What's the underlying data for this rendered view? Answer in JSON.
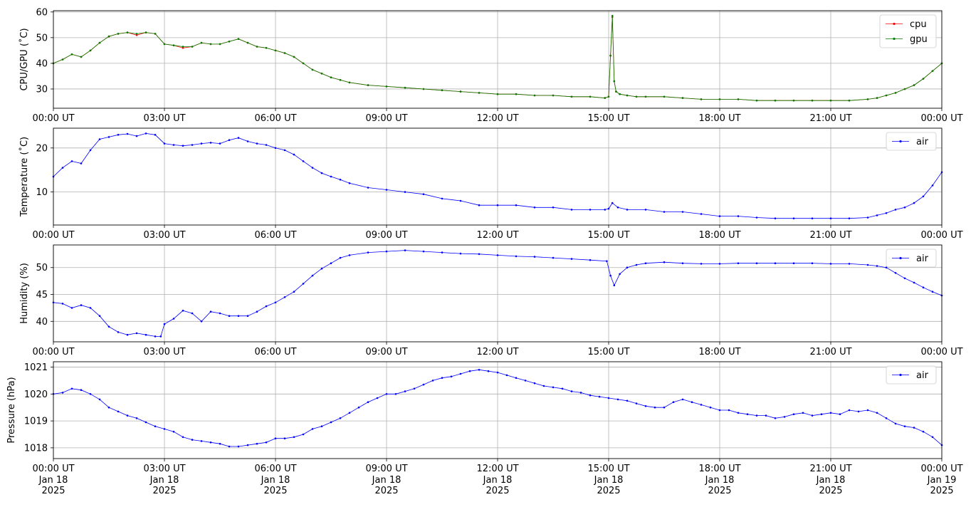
{
  "chart_data": [
    {
      "type": "line",
      "ylabel": "CPU/GPU (˚C)",
      "ylim": [
        22.5,
        60.5
      ],
      "yticks": [
        30,
        40,
        50,
        60
      ],
      "xlim": [
        0,
        24
      ],
      "xticks": [
        0,
        3,
        6,
        9,
        12,
        15,
        18,
        21,
        24
      ],
      "xtick_labels": [
        "00:00 UT",
        "03:00 UT",
        "06:00 UT",
        "09:00 UT",
        "12:00 UT",
        "15:00 UT",
        "18:00 UT",
        "21:00 UT",
        "00:00 UT"
      ],
      "grid": true,
      "legend_position": "top-right",
      "series": [
        {
          "name": "cpu",
          "color": "#ff0000",
          "x": [
            0,
            0.25,
            0.5,
            0.75,
            1.0,
            1.25,
            1.5,
            1.75,
            2.0,
            2.25,
            2.5,
            2.75,
            3.0,
            3.25,
            3.5,
            3.75,
            4.0,
            4.25,
            4.5,
            4.75,
            5.0,
            5.25,
            5.5,
            5.75,
            6.0,
            6.25,
            6.5,
            6.75,
            7.0,
            7.25,
            7.5,
            7.75,
            8.0,
            8.5,
            9.0,
            9.5,
            10.0,
            10.5,
            11.0,
            11.5,
            12.0,
            12.5,
            13.0,
            13.5,
            14.0,
            14.5,
            14.9,
            15.0,
            15.05,
            15.1,
            15.15,
            15.2,
            15.3,
            15.5,
            15.75,
            16.0,
            16.5,
            17.0,
            17.5,
            18.0,
            18.5,
            19.0,
            19.5,
            20.0,
            20.5,
            21.0,
            21.5,
            22.0,
            22.25,
            22.5,
            22.75,
            23.0,
            23.25,
            23.5,
            23.75,
            24.0
          ],
          "y": [
            40,
            41.5,
            43.5,
            42.5,
            45,
            48,
            50.5,
            51.5,
            52,
            51,
            52,
            51.5,
            47.5,
            47,
            46,
            46.5,
            48,
            47.5,
            47.5,
            48.5,
            49.5,
            48,
            46.5,
            46,
            45,
            44,
            42.5,
            40,
            37.5,
            36,
            34.5,
            33.5,
            32.5,
            31.5,
            31,
            30.5,
            30,
            29.5,
            29,
            28.5,
            28,
            28,
            27.5,
            27.5,
            27,
            27,
            26.5,
            27,
            43,
            58,
            33,
            29,
            28,
            27.5,
            27,
            27,
            27,
            26.5,
            26,
            26,
            26,
            25.5,
            25.5,
            25.5,
            25.5,
            25.5,
            25.5,
            26,
            26.5,
            27.5,
            28.5,
            30,
            31.5,
            34,
            37,
            40
          ]
        },
        {
          "name": "gpu",
          "color": "#008000",
          "x": [
            0,
            0.25,
            0.5,
            0.75,
            1.0,
            1.25,
            1.5,
            1.75,
            2.0,
            2.25,
            2.5,
            2.75,
            3.0,
            3.25,
            3.5,
            3.75,
            4.0,
            4.25,
            4.5,
            4.75,
            5.0,
            5.25,
            5.5,
            5.75,
            6.0,
            6.25,
            6.5,
            6.75,
            7.0,
            7.25,
            7.5,
            7.75,
            8.0,
            8.5,
            9.0,
            9.5,
            10.0,
            10.5,
            11.0,
            11.5,
            12.0,
            12.5,
            13.0,
            13.5,
            14.0,
            14.5,
            14.9,
            15.0,
            15.05,
            15.1,
            15.15,
            15.2,
            15.3,
            15.5,
            15.75,
            16.0,
            16.5,
            17.0,
            17.5,
            18.0,
            18.5,
            19.0,
            19.5,
            20.0,
            20.5,
            21.0,
            21.5,
            22.0,
            22.25,
            22.5,
            22.75,
            23.0,
            23.25,
            23.5,
            23.75,
            24.0
          ],
          "y": [
            40,
            41.5,
            43.5,
            42.5,
            45,
            48,
            50.5,
            51.5,
            52,
            51.5,
            52,
            51.5,
            47.5,
            47,
            46.5,
            46.5,
            48,
            47.5,
            47.5,
            48.5,
            49.5,
            48,
            46.5,
            46,
            45,
            44,
            42.5,
            40,
            37.5,
            36,
            34.5,
            33.5,
            32.5,
            31.5,
            31,
            30.5,
            30,
            29.5,
            29,
            28.5,
            28,
            28,
            27.5,
            27.5,
            27,
            27,
            26.5,
            27,
            43,
            58.5,
            33,
            29,
            28,
            27.5,
            27,
            27,
            27,
            26.5,
            26,
            26,
            26,
            25.5,
            25.5,
            25.5,
            25.5,
            25.5,
            25.5,
            26,
            26.5,
            27.5,
            28.5,
            30,
            31.5,
            34,
            37,
            40
          ]
        }
      ]
    },
    {
      "type": "line",
      "ylabel": "Temperature (˚C)",
      "ylim": [
        2.5,
        24.5
      ],
      "yticks": [
        10,
        20
      ],
      "xlim": [
        0,
        24
      ],
      "xticks": [
        0,
        3,
        6,
        9,
        12,
        15,
        18,
        21,
        24
      ],
      "xtick_labels": [
        "00:00 UT",
        "03:00 UT",
        "06:00 UT",
        "09:00 UT",
        "12:00 UT",
        "15:00 UT",
        "18:00 UT",
        "21:00 UT",
        "00:00 UT"
      ],
      "grid": true,
      "legend_position": "top-right",
      "series": [
        {
          "name": "air",
          "color": "#0000ff",
          "x": [
            0,
            0.25,
            0.5,
            0.75,
            1.0,
            1.25,
            1.5,
            1.75,
            2.0,
            2.25,
            2.5,
            2.75,
            3.0,
            3.25,
            3.5,
            3.75,
            4.0,
            4.25,
            4.5,
            4.75,
            5.0,
            5.25,
            5.5,
            5.75,
            6.0,
            6.25,
            6.5,
            6.75,
            7.0,
            7.25,
            7.5,
            7.75,
            8.0,
            8.5,
            9.0,
            9.5,
            10.0,
            10.5,
            11.0,
            11.5,
            12.0,
            12.5,
            13.0,
            13.5,
            14.0,
            14.5,
            14.9,
            15.0,
            15.1,
            15.25,
            15.5,
            16.0,
            16.5,
            17.0,
            17.5,
            18.0,
            18.5,
            19.0,
            19.5,
            20.0,
            20.5,
            21.0,
            21.5,
            22.0,
            22.25,
            22.5,
            22.75,
            23.0,
            23.25,
            23.5,
            23.75,
            24.0
          ],
          "y": [
            13.5,
            15.5,
            17,
            16.5,
            19.5,
            22,
            22.5,
            23,
            23.2,
            22.7,
            23.3,
            23,
            21,
            20.7,
            20.5,
            20.7,
            21,
            21.2,
            21,
            21.8,
            22.3,
            21.5,
            21,
            20.7,
            20,
            19.5,
            18.5,
            17,
            15.5,
            14.3,
            13.5,
            12.8,
            12,
            11,
            10.5,
            10,
            9.5,
            8.5,
            8,
            7,
            7,
            7,
            6.5,
            6.5,
            6,
            6,
            6,
            6.2,
            7.5,
            6.5,
            6,
            6,
            5.5,
            5.5,
            5,
            4.5,
            4.5,
            4.2,
            4,
            4,
            4,
            4,
            4,
            4.2,
            4.7,
            5.2,
            6,
            6.5,
            7.5,
            9,
            11.5,
            14.5
          ]
        }
      ]
    },
    {
      "type": "line",
      "ylabel": "Humidity (%)",
      "ylim": [
        36.2,
        54.2
      ],
      "yticks": [
        40,
        45,
        50
      ],
      "xlim": [
        0,
        24
      ],
      "xticks": [
        0,
        3,
        6,
        9,
        12,
        15,
        18,
        21,
        24
      ],
      "xtick_labels": [
        "00:00 UT",
        "03:00 UT",
        "06:00 UT",
        "09:00 UT",
        "12:00 UT",
        "15:00 UT",
        "18:00 UT",
        "21:00 UT",
        "00:00 UT"
      ],
      "grid": true,
      "legend_position": "top-right",
      "series": [
        {
          "name": "air",
          "color": "#0000ff",
          "x": [
            0,
            0.25,
            0.5,
            0.75,
            1.0,
            1.25,
            1.5,
            1.75,
            2.0,
            2.25,
            2.5,
            2.75,
            2.9,
            3.0,
            3.25,
            3.5,
            3.75,
            4.0,
            4.25,
            4.5,
            4.75,
            5.0,
            5.25,
            5.5,
            5.75,
            6.0,
            6.25,
            6.5,
            6.75,
            7.0,
            7.25,
            7.5,
            7.75,
            8.0,
            8.5,
            9.0,
            9.5,
            10.0,
            10.5,
            11.0,
            11.5,
            12.0,
            12.5,
            13.0,
            13.5,
            14.0,
            14.5,
            14.95,
            15.05,
            15.15,
            15.3,
            15.5,
            15.75,
            16.0,
            16.5,
            17.0,
            17.5,
            18.0,
            18.5,
            19.0,
            19.5,
            20.0,
            20.5,
            21.0,
            21.5,
            22.0,
            22.25,
            22.5,
            22.75,
            23.0,
            23.25,
            23.5,
            23.75,
            24.0
          ],
          "y": [
            43.5,
            43.3,
            42.5,
            43,
            42.5,
            41,
            39,
            38,
            37.5,
            37.8,
            37.5,
            37.2,
            37.2,
            39.5,
            40.5,
            42,
            41.5,
            40,
            41.8,
            41.5,
            41,
            41,
            41,
            41.8,
            42.8,
            43.5,
            44.5,
            45.5,
            47,
            48.5,
            49.8,
            50.8,
            51.8,
            52.3,
            52.8,
            53,
            53.2,
            53,
            52.8,
            52.6,
            52.5,
            52.3,
            52.1,
            52,
            51.8,
            51.6,
            51.4,
            51.2,
            48.5,
            46.7,
            48.8,
            50,
            50.5,
            50.8,
            51,
            50.8,
            50.7,
            50.7,
            50.8,
            50.8,
            50.8,
            50.8,
            50.8,
            50.7,
            50.7,
            50.5,
            50.3,
            50,
            49,
            48,
            47.2,
            46.3,
            45.5,
            44.8
          ]
        }
      ]
    },
    {
      "type": "line",
      "ylabel": "Pressure (hPa)",
      "ylim": [
        1017.6,
        1021.2
      ],
      "yticks": [
        1018,
        1019,
        1020,
        1021
      ],
      "xlim": [
        0,
        24
      ],
      "xticks": [
        0,
        3,
        6,
        9,
        12,
        15,
        18,
        21,
        24
      ],
      "xtick_labels": [
        "00:00 UT",
        "03:00 UT",
        "06:00 UT",
        "09:00 UT",
        "12:00 UT",
        "15:00 UT",
        "18:00 UT",
        "21:00 UT",
        "00:00 UT"
      ],
      "xtick_date_labels": [
        [
          "Jan 18",
          "2025"
        ],
        [
          "Jan 18",
          "2025"
        ],
        [
          "Jan 18",
          "2025"
        ],
        [
          "Jan 18",
          "2025"
        ],
        [
          "Jan 18",
          "2025"
        ],
        [
          "Jan 18",
          "2025"
        ],
        [
          "Jan 18",
          "2025"
        ],
        [
          "Jan 18",
          "2025"
        ],
        [
          "Jan 19",
          "2025"
        ]
      ],
      "grid": true,
      "legend_position": "top-right",
      "series": [
        {
          "name": "air",
          "color": "#0000ff",
          "x": [
            0,
            0.25,
            0.5,
            0.75,
            1.0,
            1.25,
            1.5,
            1.75,
            2.0,
            2.25,
            2.5,
            2.75,
            3.0,
            3.25,
            3.5,
            3.75,
            4.0,
            4.25,
            4.5,
            4.75,
            5.0,
            5.25,
            5.5,
            5.75,
            6.0,
            6.25,
            6.5,
            6.75,
            7.0,
            7.25,
            7.5,
            7.75,
            8.0,
            8.25,
            8.5,
            8.75,
            9.0,
            9.25,
            9.5,
            9.75,
            10.0,
            10.25,
            10.5,
            10.75,
            11.0,
            11.25,
            11.5,
            11.75,
            12.0,
            12.25,
            12.5,
            12.75,
            13.0,
            13.25,
            13.5,
            13.75,
            14.0,
            14.25,
            14.5,
            14.75,
            15.0,
            15.25,
            15.5,
            15.75,
            16.0,
            16.25,
            16.5,
            16.75,
            17.0,
            17.25,
            17.5,
            17.75,
            18.0,
            18.25,
            18.5,
            18.75,
            19.0,
            19.25,
            19.5,
            19.75,
            20.0,
            20.25,
            20.5,
            20.75,
            21.0,
            21.25,
            21.5,
            21.75,
            22.0,
            22.25,
            22.5,
            22.75,
            23.0,
            23.25,
            23.5,
            23.75,
            24.0
          ],
          "y": [
            1020.0,
            1020.05,
            1020.2,
            1020.15,
            1020.0,
            1019.8,
            1019.5,
            1019.35,
            1019.2,
            1019.1,
            1018.95,
            1018.8,
            1018.7,
            1018.6,
            1018.4,
            1018.3,
            1018.25,
            1018.2,
            1018.15,
            1018.05,
            1018.05,
            1018.1,
            1018.15,
            1018.2,
            1018.35,
            1018.35,
            1018.4,
            1018.5,
            1018.7,
            1018.8,
            1018.95,
            1019.1,
            1019.3,
            1019.5,
            1019.7,
            1019.85,
            1020.0,
            1020.0,
            1020.1,
            1020.2,
            1020.35,
            1020.5,
            1020.6,
            1020.65,
            1020.75,
            1020.85,
            1020.9,
            1020.85,
            1020.8,
            1020.7,
            1020.6,
            1020.5,
            1020.4,
            1020.3,
            1020.25,
            1020.2,
            1020.1,
            1020.05,
            1019.95,
            1019.9,
            1019.85,
            1019.8,
            1019.75,
            1019.65,
            1019.55,
            1019.5,
            1019.5,
            1019.7,
            1019.8,
            1019.7,
            1019.6,
            1019.5,
            1019.4,
            1019.4,
            1019.3,
            1019.25,
            1019.2,
            1019.2,
            1019.1,
            1019.15,
            1019.25,
            1019.3,
            1019.2,
            1019.25,
            1019.3,
            1019.25,
            1019.4,
            1019.35,
            1019.4,
            1019.3,
            1019.1,
            1018.9,
            1018.8,
            1018.75,
            1018.6,
            1018.4,
            1018.1
          ]
        }
      ]
    }
  ]
}
